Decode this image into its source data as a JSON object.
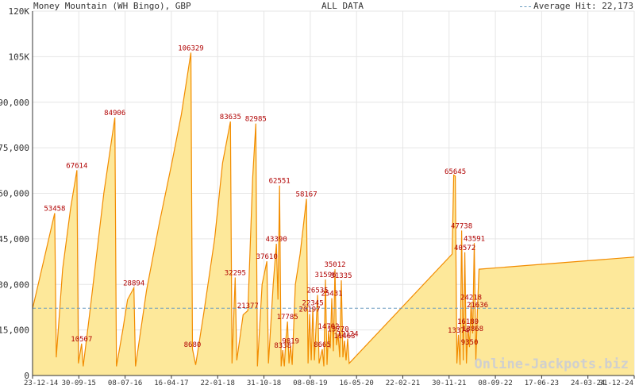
{
  "header": {
    "title": "Money Mountain (WH Bingo), GBP",
    "center": "ALL DATA",
    "legend": "Average Hit: 22,173"
  },
  "watermark": "Online-Jackpots.biz",
  "colors": {
    "fill": "#fde89a",
    "line": "#f28c00",
    "label": "#b00000",
    "average": "#6a9cbf",
    "grid": "#e6e6e6",
    "axis": "#333333"
  },
  "chart_data": {
    "type": "area",
    "title": "Money Mountain (WH Bingo), GBP",
    "ylim": [
      0,
      120000
    ],
    "y_ticks": [
      "0",
      "15,000",
      "30,000",
      "45,000",
      "60,000",
      "75,000",
      "90,000",
      "105K",
      "120K"
    ],
    "y_tick_values": [
      0,
      15000,
      30000,
      45000,
      60000,
      75000,
      90000,
      105000,
      120000
    ],
    "x_tick_labels": [
      "23-12-14",
      "30-09-15",
      "08-07-16",
      "16-04-17",
      "22-01-18",
      "31-10-18",
      "08-08-19",
      "16-05-20",
      "22-02-21",
      "30-11-21",
      "08-09-22",
      "17-06-23",
      "24-03-24",
      "31-12-24"
    ],
    "average_hit": 22173,
    "legend": [
      "Average Hit: 22,173"
    ],
    "points": [
      [
        0,
        22000
      ],
      [
        8,
        40000
      ],
      [
        14,
        53458
      ],
      [
        15,
        6000
      ],
      [
        19,
        35000
      ],
      [
        24,
        55000
      ],
      [
        28,
        67614
      ],
      [
        29,
        4000
      ],
      [
        31,
        10507
      ],
      [
        32,
        3000
      ],
      [
        36,
        20000
      ],
      [
        45,
        60000
      ],
      [
        52,
        84906
      ],
      [
        53,
        3000
      ],
      [
        57,
        15000
      ],
      [
        60,
        25000
      ],
      [
        64,
        28894
      ],
      [
        65,
        3000
      ],
      [
        72,
        28000
      ],
      [
        80,
        50000
      ],
      [
        88,
        70000
      ],
      [
        94,
        86000
      ],
      [
        100,
        106329
      ],
      [
        101,
        8680
      ],
      [
        103,
        3500
      ],
      [
        108,
        20000
      ],
      [
        115,
        45000
      ],
      [
        120,
        70000
      ],
      [
        125,
        83635
      ],
      [
        126,
        4000
      ],
      [
        128,
        32295
      ],
      [
        129,
        5000
      ],
      [
        133,
        20000
      ],
      [
        136,
        21377
      ],
      [
        139,
        65000
      ],
      [
        141,
        82985
      ],
      [
        142,
        3000
      ],
      [
        145,
        30000
      ],
      [
        148,
        37610
      ],
      [
        149,
        4000
      ],
      [
        152,
        30000
      ],
      [
        154,
        43390
      ],
      [
        155,
        25000
      ],
      [
        156,
        62551
      ],
      [
        157,
        3000
      ],
      [
        158,
        8338
      ],
      [
        159,
        3000
      ],
      [
        160,
        12000
      ],
      [
        161,
        17785
      ],
      [
        162,
        4000
      ],
      [
        163,
        9819
      ],
      [
        164,
        3500
      ],
      [
        166,
        30000
      ],
      [
        169,
        40000
      ],
      [
        173,
        58167
      ],
      [
        174,
        4000
      ],
      [
        175,
        20197
      ],
      [
        176,
        5000
      ],
      [
        177,
        22345
      ],
      [
        178,
        5000
      ],
      [
        180,
        26535
      ],
      [
        181,
        4000
      ],
      [
        183,
        8665
      ],
      [
        184,
        3000
      ],
      [
        185,
        31596
      ],
      [
        186,
        3500
      ],
      [
        187,
        14702
      ],
      [
        188,
        9000
      ],
      [
        189,
        25431
      ],
      [
        190,
        8000
      ],
      [
        191,
        35012
      ],
      [
        192,
        10000
      ],
      [
        193,
        13770
      ],
      [
        194,
        6000
      ],
      [
        195,
        31335
      ],
      [
        196,
        6000
      ],
      [
        197,
        11463
      ],
      [
        198,
        5000
      ],
      [
        199,
        12124
      ],
      [
        200,
        4000
      ],
      [
        265,
        40000
      ],
      [
        266,
        66000
      ],
      [
        267,
        65645
      ],
      [
        268,
        4000
      ],
      [
        269,
        13374
      ],
      [
        270,
        3500
      ],
      [
        271,
        47738
      ],
      [
        272,
        5000
      ],
      [
        273,
        40572
      ],
      [
        274,
        4000
      ],
      [
        275,
        16180
      ],
      [
        276,
        9350
      ],
      [
        277,
        24218
      ],
      [
        278,
        13868
      ],
      [
        279,
        43591
      ],
      [
        280,
        5000
      ],
      [
        281,
        21636
      ],
      [
        282,
        35000
      ],
      [
        380,
        39000
      ]
    ],
    "x_max": 380,
    "point_labels": [
      {
        "x": 14,
        "y": 53458,
        "text": "53458"
      },
      {
        "x": 28,
        "y": 67614,
        "text": "67614"
      },
      {
        "x": 31,
        "y": 10507,
        "text": "10507"
      },
      {
        "x": 52,
        "y": 84906,
        "text": "84906"
      },
      {
        "x": 64,
        "y": 28894,
        "text": "28894"
      },
      {
        "x": 100,
        "y": 106329,
        "text": "106329"
      },
      {
        "x": 101,
        "y": 8680,
        "text": "8680"
      },
      {
        "x": 125,
        "y": 83635,
        "text": "83635"
      },
      {
        "x": 128,
        "y": 32295,
        "text": "32295"
      },
      {
        "x": 136,
        "y": 21377,
        "text": "21377"
      },
      {
        "x": 141,
        "y": 82985,
        "text": "82985"
      },
      {
        "x": 148,
        "y": 37610,
        "text": "37610"
      },
      {
        "x": 154,
        "y": 43390,
        "text": "43390"
      },
      {
        "x": 156,
        "y": 62551,
        "text": "62551"
      },
      {
        "x": 158,
        "y": 8338,
        "text": "8338"
      },
      {
        "x": 161,
        "y": 17785,
        "text": "17785"
      },
      {
        "x": 163,
        "y": 9819,
        "text": "9819"
      },
      {
        "x": 173,
        "y": 58167,
        "text": "58167"
      },
      {
        "x": 175,
        "y": 20197,
        "text": "20197"
      },
      {
        "x": 177,
        "y": 22345,
        "text": "22345"
      },
      {
        "x": 180,
        "y": 26535,
        "text": "26535"
      },
      {
        "x": 183,
        "y": 8665,
        "text": "8665"
      },
      {
        "x": 185,
        "y": 31596,
        "text": "31596"
      },
      {
        "x": 187,
        "y": 14702,
        "text": "14702"
      },
      {
        "x": 189,
        "y": 25431,
        "text": "25431"
      },
      {
        "x": 191,
        "y": 35012,
        "text": "35012"
      },
      {
        "x": 193,
        "y": 13770,
        "text": "13770"
      },
      {
        "x": 195,
        "y": 31335,
        "text": "31335"
      },
      {
        "x": 197,
        "y": 11463,
        "text": "11463"
      },
      {
        "x": 199,
        "y": 12124,
        "text": "12124"
      },
      {
        "x": 267,
        "y": 65645,
        "text": "65645"
      },
      {
        "x": 269,
        "y": 13374,
        "text": "13374"
      },
      {
        "x": 271,
        "y": 47738,
        "text": "47738"
      },
      {
        "x": 273,
        "y": 40572,
        "text": "40572"
      },
      {
        "x": 275,
        "y": 16180,
        "text": "16180"
      },
      {
        "x": 276,
        "y": 9350,
        "text": "9350"
      },
      {
        "x": 277,
        "y": 24218,
        "text": "24218"
      },
      {
        "x": 278,
        "y": 13868,
        "text": "13868"
      },
      {
        "x": 279,
        "y": 43591,
        "text": "43591"
      },
      {
        "x": 281,
        "y": 21636,
        "text": "21636"
      }
    ],
    "grid": true
  }
}
